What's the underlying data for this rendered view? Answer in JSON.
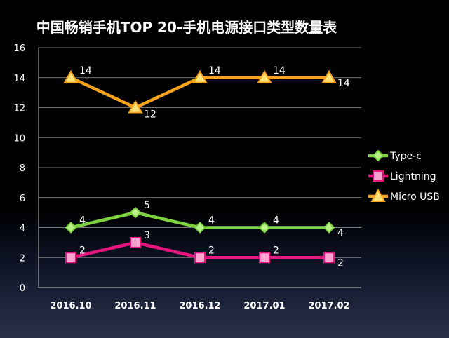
{
  "chart_data": {
    "type": "line",
    "title": "中国畅销手机TOP 20-手机电源接口类型数量表",
    "categories": [
      "2016.10",
      "2016.11",
      "2016.12",
      "2017.01",
      "2017.02"
    ],
    "ylim": [
      0,
      16
    ],
    "yticks": [
      "0",
      "2",
      "4",
      "6",
      "8",
      "10",
      "12",
      "14",
      "16"
    ],
    "grid": true,
    "legend_position": "right",
    "series": [
      {
        "name": "Type-c",
        "values": [
          4,
          5,
          4,
          4,
          4
        ],
        "labels": [
          "4",
          "5",
          "4",
          "4",
          "4"
        ],
        "color": "#7dd23f",
        "marker": "diamond"
      },
      {
        "name": "Lightning",
        "values": [
          2,
          3,
          2,
          2,
          2
        ],
        "labels": [
          "2",
          "3",
          "2",
          "2",
          "2"
        ],
        "color": "#e5157e",
        "marker": "square"
      },
      {
        "name": "Micro USB",
        "values": [
          14,
          12,
          14,
          14,
          14
        ],
        "labels": [
          "14",
          "12",
          "14",
          "14",
          "14"
        ],
        "color": "#f5a21d",
        "marker": "triangle"
      }
    ]
  }
}
